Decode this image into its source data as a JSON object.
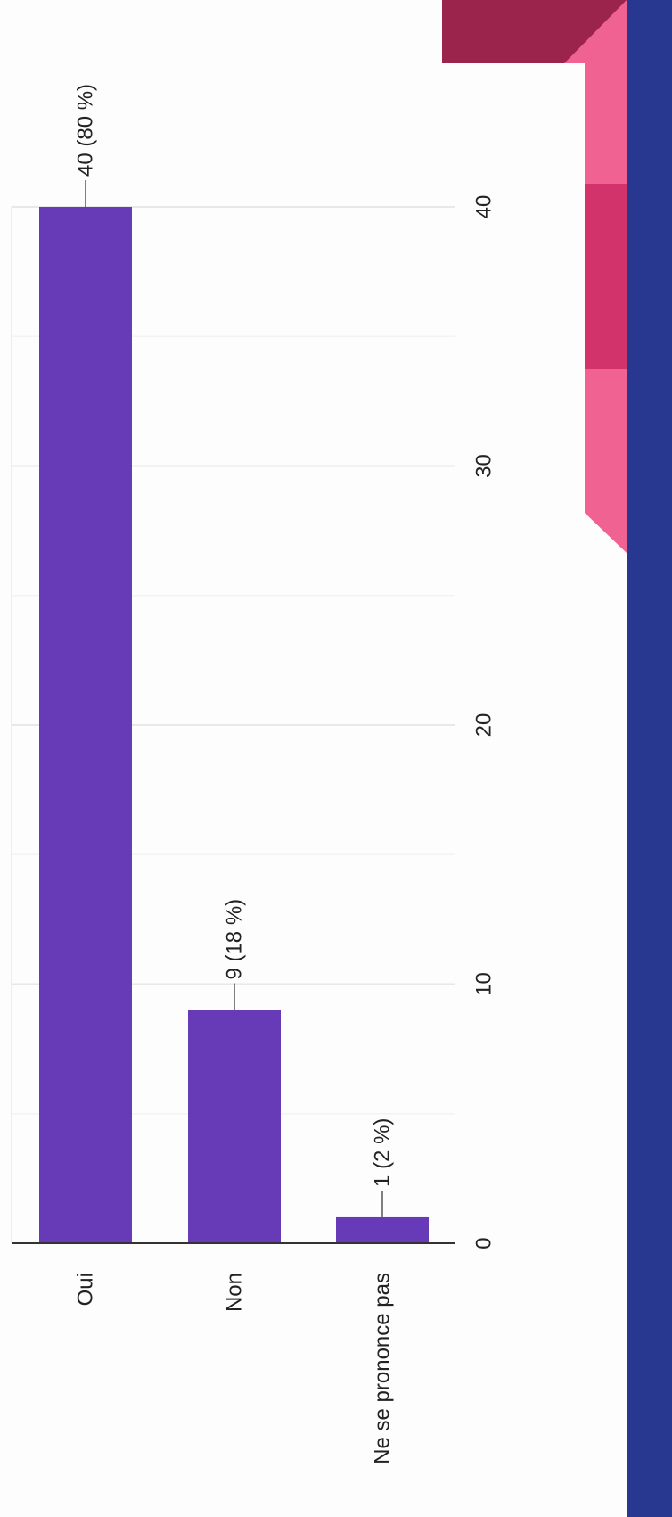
{
  "chart_data": {
    "type": "bar",
    "categories": [
      "Oui",
      "Non",
      "Ne se prononce pas"
    ],
    "values": [
      40,
      9,
      1
    ],
    "value_labels": [
      "40 (80 %)",
      "9 (18 %)",
      "1 (2 %)"
    ],
    "color": "#673ab7",
    "ylim": [
      0,
      40
    ],
    "yticks": [
      0,
      10,
      20,
      30,
      40
    ],
    "minor_yticks": [
      5,
      15,
      25,
      35
    ],
    "grid": true
  }
}
